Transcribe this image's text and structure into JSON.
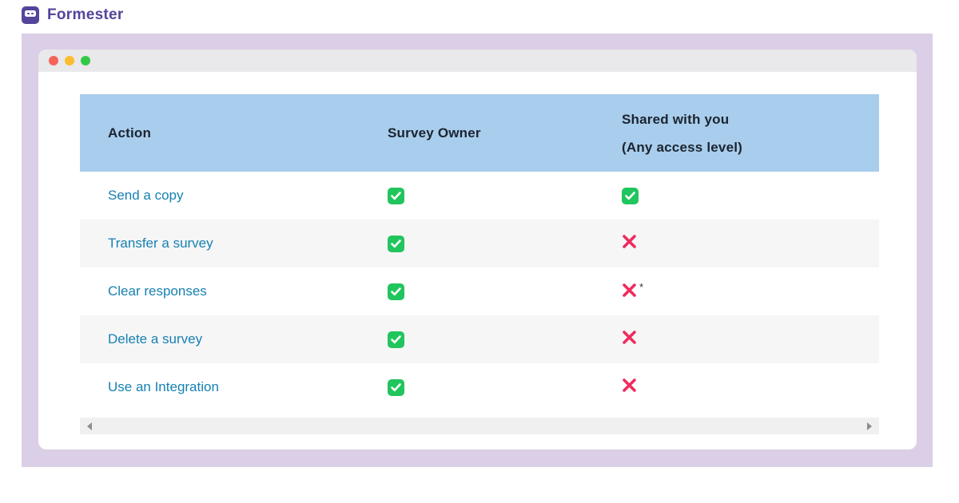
{
  "brand": {
    "name": "Formester",
    "accent_color": "#55449B"
  },
  "table": {
    "header_bg": "#A9CDEC",
    "check_color": "#21C55D",
    "cross_color": "#EF2B5E",
    "columns": [
      {
        "label": "Action"
      },
      {
        "label": "Survey Owner"
      },
      {
        "label": "Shared with you",
        "sublabel": "(Any access level)"
      }
    ],
    "rows": [
      {
        "action": "Send a copy",
        "survey_owner": "check",
        "shared_with_you": "check",
        "note": ""
      },
      {
        "action": "Transfer a survey",
        "survey_owner": "check",
        "shared_with_you": "cross",
        "note": ""
      },
      {
        "action": "Clear responses",
        "survey_owner": "check",
        "shared_with_you": "cross",
        "note": "*"
      },
      {
        "action": "Delete a survey",
        "survey_owner": "check",
        "shared_with_you": "cross",
        "note": ""
      },
      {
        "action": "Use an Integration",
        "survey_owner": "check",
        "shared_with_you": "cross",
        "note": ""
      }
    ]
  }
}
